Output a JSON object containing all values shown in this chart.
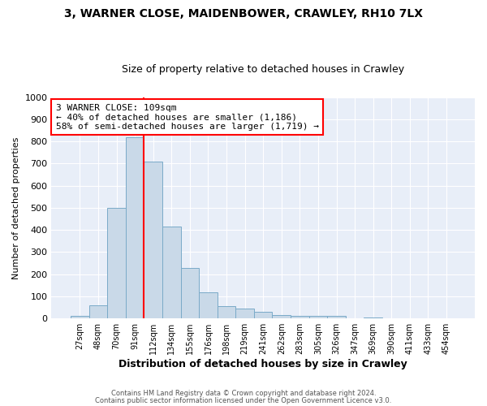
{
  "title_line1": "3, WARNER CLOSE, MAIDENBOWER, CRAWLEY, RH10 7LX",
  "title_line2": "Size of property relative to detached houses in Crawley",
  "xlabel": "Distribution of detached houses by size in Crawley",
  "ylabel": "Number of detached properties",
  "bar_values": [
    10,
    60,
    500,
    820,
    710,
    415,
    228,
    118,
    57,
    45,
    30,
    15,
    12,
    10,
    12,
    0,
    5,
    0,
    0,
    0,
    0
  ],
  "bar_labels": [
    "27sqm",
    "48sqm",
    "70sqm",
    "91sqm",
    "112sqm",
    "134sqm",
    "155sqm",
    "176sqm",
    "198sqm",
    "219sqm",
    "241sqm",
    "262sqm",
    "283sqm",
    "305sqm",
    "326sqm",
    "347sqm",
    "369sqm",
    "390sqm",
    "411sqm",
    "433sqm",
    "454sqm"
  ],
  "bar_color": "#c9d9e8",
  "bar_edge_color": "#7aaac8",
  "red_line_index": 4,
  "annotation_text": "3 WARNER CLOSE: 109sqm\n← 40% of detached houses are smaller (1,186)\n58% of semi-detached houses are larger (1,719) →",
  "ylim": [
    0,
    1000
  ],
  "yticks": [
    0,
    100,
    200,
    300,
    400,
    500,
    600,
    700,
    800,
    900,
    1000
  ],
  "footer_line1": "Contains HM Land Registry data © Crown copyright and database right 2024.",
  "footer_line2": "Contains public sector information licensed under the Open Government Licence v3.0.",
  "fig_background_color": "#ffffff",
  "plot_background_color": "#e8eef8",
  "grid_color": "#ffffff",
  "title1_fontsize": 10,
  "title2_fontsize": 9
}
